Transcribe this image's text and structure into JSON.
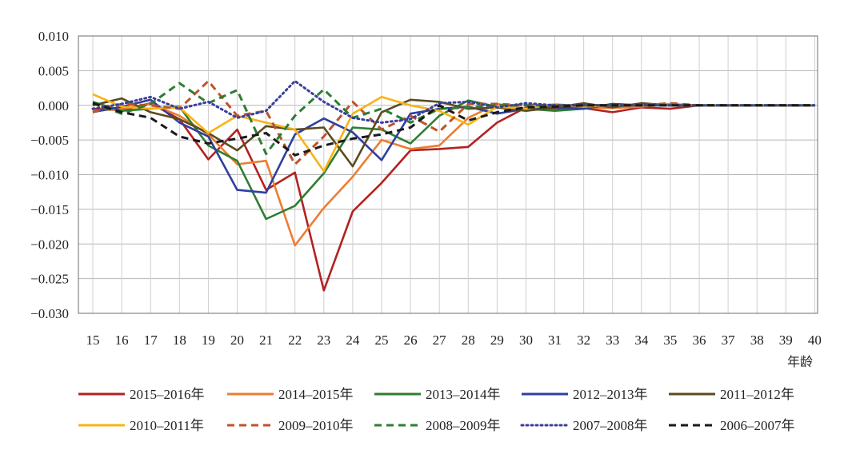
{
  "chart_data": {
    "type": "line",
    "title": "",
    "xlabel": "年龄",
    "ylabel": "",
    "x": [
      15,
      16,
      17,
      18,
      19,
      20,
      21,
      22,
      23,
      24,
      25,
      26,
      27,
      28,
      29,
      30,
      31,
      32,
      33,
      34,
      35,
      36,
      37,
      38,
      39,
      40
    ],
    "ylim": [
      -0.03,
      0.01
    ],
    "yticks": [
      0.01,
      0.005,
      0.0,
      -0.005,
      -0.01,
      -0.015,
      -0.02,
      -0.025,
      -0.03
    ],
    "ytick_labels": [
      "0.010",
      "0.005",
      "0.000",
      "−0.005",
      "−0.010",
      "−0.015",
      "−0.020",
      "−0.025",
      "−0.030"
    ],
    "grid": true,
    "legend": "bottom",
    "series": [
      {
        "name": "2015–2016年",
        "color": "#b22222",
        "style": "solid",
        "values": [
          -0.0005,
          -0.0007,
          0.0003,
          -0.002,
          -0.0078,
          -0.0035,
          -0.0122,
          -0.0097,
          -0.0267,
          -0.0153,
          -0.0112,
          -0.0065,
          -0.0063,
          -0.006,
          -0.0025,
          -0.0003,
          -0.0005,
          -0.0004,
          -0.001,
          -0.0003,
          -0.0005,
          0.0,
          0.0,
          0.0,
          0.0,
          0.0
        ]
      },
      {
        "name": "2014–2015年",
        "color": "#ed7d31",
        "style": "solid",
        "values": [
          -0.0008,
          -0.0005,
          0.0002,
          -0.0015,
          -0.0042,
          -0.0085,
          -0.008,
          -0.0202,
          -0.0148,
          -0.0103,
          -0.005,
          -0.0063,
          -0.0058,
          -0.0018,
          0.0002,
          -0.0005,
          0.0,
          -0.0003,
          -0.0004,
          -0.0002,
          0.0002,
          0.0,
          0.0,
          0.0,
          0.0,
          0.0
        ]
      },
      {
        "name": "2013–2014年",
        "color": "#2e7d32",
        "style": "solid",
        "values": [
          0.0005,
          -0.0008,
          -0.0005,
          -0.0002,
          -0.0058,
          -0.008,
          -0.0164,
          -0.0145,
          -0.0098,
          -0.0032,
          -0.0035,
          -0.0055,
          -0.0015,
          0.0007,
          -0.0002,
          -0.0005,
          -0.0008,
          -0.0005,
          0.0002,
          0.0,
          0.0,
          0.0,
          0.0,
          0.0,
          0.0,
          0.0
        ]
      },
      {
        "name": "2012–2013年",
        "color": "#2f3f9e",
        "style": "solid",
        "values": [
          -0.001,
          -0.0002,
          0.0008,
          -0.0025,
          -0.0045,
          -0.0122,
          -0.0126,
          -0.0042,
          -0.0019,
          -0.0039,
          -0.0079,
          -0.0012,
          -0.0005,
          -0.0002,
          -0.0012,
          -0.0005,
          -0.0003,
          -0.0005,
          0.0002,
          0.0,
          0.0,
          0.0,
          0.0,
          0.0,
          0.0,
          0.0
        ]
      },
      {
        "name": "2011–2012年",
        "color": "#5c4b1f",
        "style": "solid",
        "values": [
          0.0,
          0.001,
          -0.001,
          -0.002,
          -0.004,
          -0.0065,
          -0.003,
          -0.0035,
          -0.0032,
          -0.0088,
          -0.001,
          0.0008,
          0.0005,
          -0.0005,
          -0.0003,
          -0.0008,
          -0.0003,
          0.0003,
          -0.0003,
          0.0003,
          0.0,
          0.0,
          0.0,
          0.0,
          0.0,
          0.0
        ]
      },
      {
        "name": "2010–2011年",
        "color": "#f7b316",
        "style": "solid",
        "values": [
          0.0016,
          -0.0002,
          -0.0005,
          -0.0003,
          -0.004,
          -0.0015,
          -0.0025,
          -0.0035,
          -0.0095,
          -0.0012,
          0.0012,
          0.0,
          -0.0008,
          -0.0028,
          -0.0002,
          -0.0005,
          0.0002,
          -0.0002,
          0.0,
          0.0,
          0.0,
          0.0,
          0.0,
          0.0,
          0.0,
          0.0
        ]
      },
      {
        "name": "2009–2010年",
        "color": "#c0522a",
        "style": "dash",
        "values": [
          -0.001,
          0.0002,
          0.0,
          -0.0005,
          0.0035,
          -0.0015,
          -0.0008,
          -0.0085,
          -0.0045,
          0.0005,
          -0.0035,
          -0.0015,
          -0.0038,
          0.0002,
          0.0002,
          0.0,
          0.0,
          0.0,
          0.0,
          0.0,
          0.0003,
          0.0,
          0.0,
          0.0,
          0.0,
          0.0
        ]
      },
      {
        "name": "2008–2009年",
        "color": "#2e7d32",
        "style": "dash",
        "values": [
          0.0003,
          -0.0012,
          0.0002,
          0.0032,
          0.0003,
          0.0022,
          -0.007,
          -0.0015,
          0.0023,
          -0.0018,
          -0.0005,
          -0.0025,
          -0.0005,
          -0.0003,
          0.0,
          0.0,
          0.0,
          0.0,
          0.0,
          0.0,
          0.0,
          0.0,
          0.0,
          0.0,
          0.0,
          0.0
        ]
      },
      {
        "name": "2007–2008年",
        "color": "#3b3f9a",
        "style": "dot",
        "values": [
          -0.0005,
          0.0002,
          0.0012,
          -0.0005,
          0.0005,
          -0.0018,
          -0.0008,
          0.0035,
          0.0005,
          -0.0018,
          -0.0025,
          -0.002,
          0.0003,
          0.0005,
          -0.0003,
          0.0003,
          0.0,
          0.0,
          0.0,
          0.0,
          0.0,
          0.0,
          0.0,
          0.0,
          0.0,
          0.0
        ]
      },
      {
        "name": "2006–2007年",
        "color": "#1a1a1a",
        "style": "dash",
        "values": [
          0.0003,
          -0.001,
          -0.0018,
          -0.0045,
          -0.0055,
          -0.0048,
          -0.004,
          -0.0072,
          -0.0058,
          -0.0048,
          -0.0042,
          -0.0032,
          0.0,
          -0.0022,
          -0.001,
          -0.0003,
          -0.0002,
          0.0,
          0.0,
          0.0,
          0.0,
          0.0,
          0.0,
          0.0,
          0.0,
          0.0
        ]
      }
    ]
  }
}
